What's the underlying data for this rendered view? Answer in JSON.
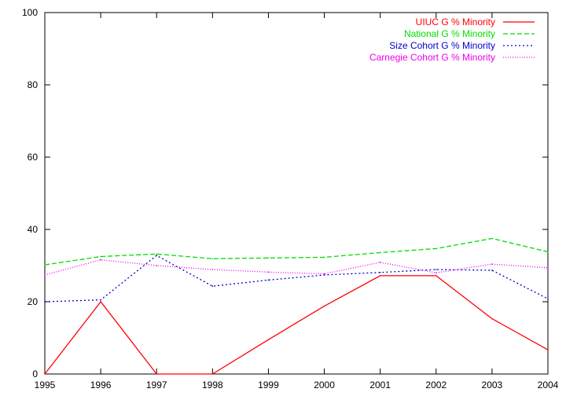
{
  "chart_data": {
    "type": "line",
    "title": "",
    "xlabel": "",
    "ylabel": "",
    "xlim": [
      1995,
      2004
    ],
    "ylim": [
      0,
      100
    ],
    "grid": false,
    "legend_position": "top-right",
    "x_ticks": [
      "1995",
      "1996",
      "1997",
      "1998",
      "1999",
      "2000",
      "2001",
      "2002",
      "2003",
      "2004"
    ],
    "y_ticks": [
      "0",
      "20",
      "40",
      "60",
      "80",
      "100"
    ],
    "x": [
      1995,
      1996,
      1997,
      1998,
      1999,
      2000,
      2001,
      2002,
      2003,
      2004
    ],
    "series": [
      {
        "name": "UIUC G % Minority",
        "color": "#ff0000",
        "dash": "solid",
        "values": [
          0,
          20,
          0,
          0,
          9.5,
          18.8,
          27.2,
          27.2,
          15.3,
          6.7
        ]
      },
      {
        "name": "National G % Minority",
        "color": "#00dd00",
        "dash": "dashed",
        "values": [
          30.2,
          32.5,
          33.2,
          31.9,
          32.1,
          32.3,
          33.6,
          34.7,
          37.5,
          33.8
        ]
      },
      {
        "name": "Size Cohort G % Minority",
        "color": "#0000cc",
        "dash": "dotted",
        "values": [
          20.0,
          20.5,
          32.8,
          24.3,
          26.0,
          27.4,
          28.1,
          28.9,
          28.7,
          20.8
        ]
      },
      {
        "name": "Carnegie Cohort G % Minority",
        "color": "#ee00ee",
        "dash": "fine-dotted",
        "values": [
          27.4,
          31.6,
          30.0,
          28.9,
          28.2,
          27.7,
          30.9,
          28.0,
          30.4,
          29.4
        ]
      }
    ]
  }
}
